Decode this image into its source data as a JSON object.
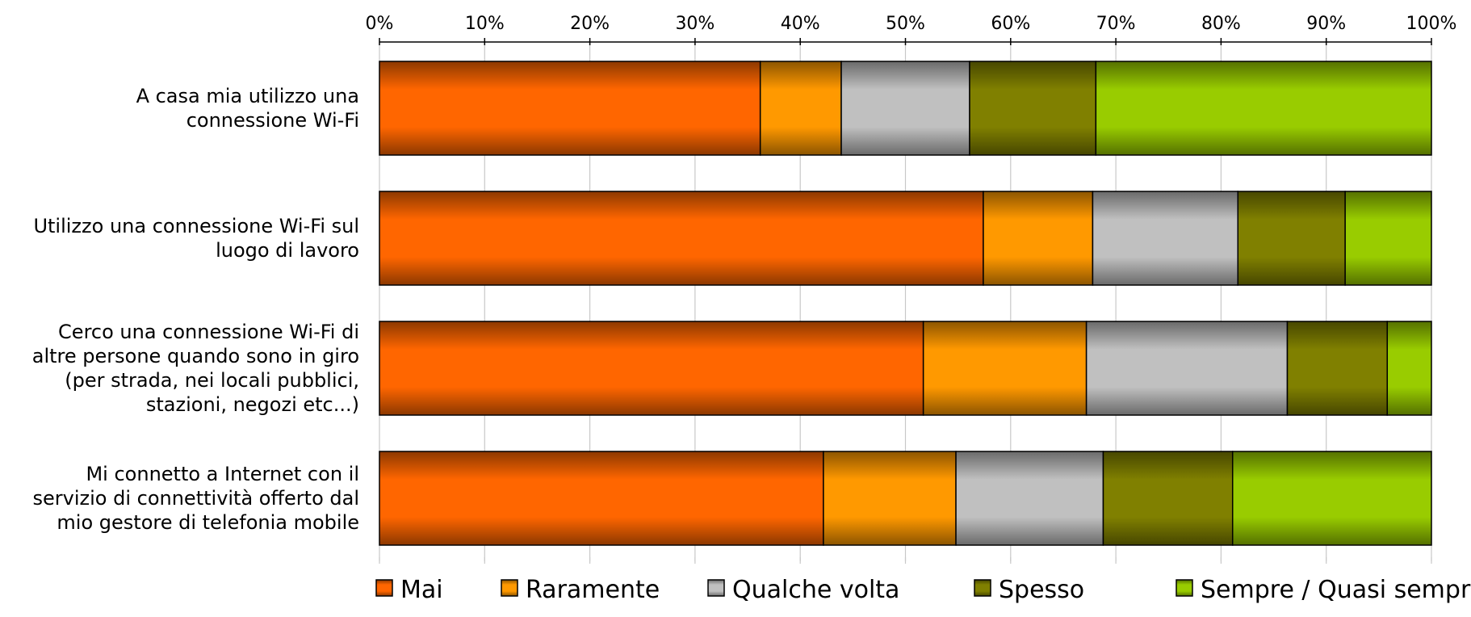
{
  "chart_data": {
    "type": "bar",
    "orientation": "horizontal",
    "stacked": true,
    "percent_stacked": true,
    "categories": [
      [
        "A casa mia utilizzo una",
        "connessione Wi-Fi"
      ],
      [
        "Utilizzo una connessione Wi-Fi sul",
        "luogo di lavoro"
      ],
      [
        "Cerco una connessione Wi-Fi di",
        "altre persone quando sono in giro",
        "(per strada, nei locali pubblici,",
        "stazioni, negozi etc...)"
      ],
      [
        "Mi connetto a Internet con il",
        "servizio di connettività offerto dal",
        "mio gestore di telefonia mobile"
      ]
    ],
    "series": [
      {
        "name": "Mai",
        "color": "#ff6600",
        "values": [
          36.2,
          57.4,
          51.7,
          42.2
        ]
      },
      {
        "name": "Raramente",
        "color": "#ff9900",
        "values": [
          7.7,
          10.4,
          15.5,
          12.6
        ]
      },
      {
        "name": "Qualche volta",
        "color": "#c0c0c0",
        "values": [
          12.2,
          13.8,
          19.1,
          14.0
        ]
      },
      {
        "name": "Spesso",
        "color": "#808000",
        "values": [
          12.0,
          10.2,
          9.5,
          12.3
        ]
      },
      {
        "name": "Sempre / Quasi sempre",
        "color": "#99cc00",
        "values": [
          31.9,
          8.2,
          4.2,
          18.9
        ]
      }
    ],
    "x_ticks": [
      "0%",
      "10%",
      "20%",
      "30%",
      "40%",
      "50%",
      "60%",
      "70%",
      "80%",
      "90%",
      "100%"
    ],
    "xlim": [
      0,
      100
    ],
    "axis_position": "top",
    "grid": true,
    "legend_position": "bottom"
  }
}
